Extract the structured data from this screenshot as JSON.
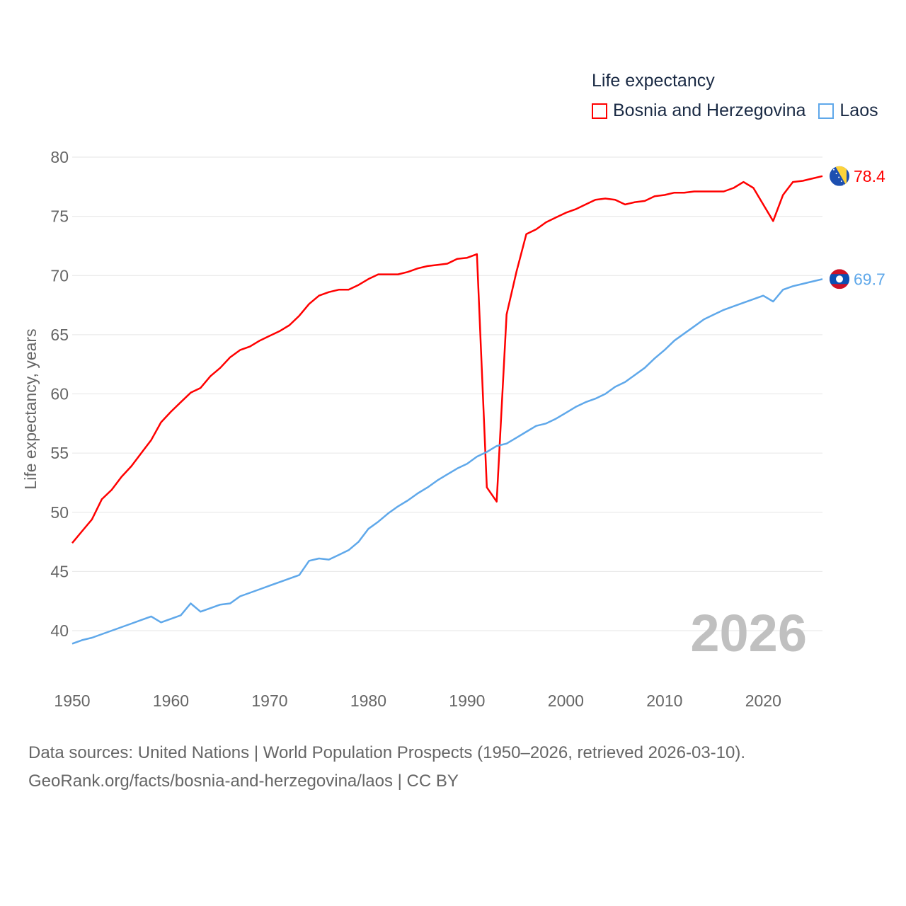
{
  "chart_data": {
    "type": "line",
    "legend_title": "Life expectancy",
    "ylabel": "Life expectancy, years",
    "xlabel": "",
    "ylim": [
      40,
      80
    ],
    "xlim": [
      1950,
      2026
    ],
    "yticks": [
      40,
      45,
      50,
      55,
      60,
      65,
      70,
      75,
      80
    ],
    "xticks": [
      1950,
      1960,
      1970,
      1980,
      1990,
      2000,
      2010,
      2020
    ],
    "year_label": "2026",
    "grid": true,
    "legend_position": "top-right",
    "x": [
      1950,
      1951,
      1952,
      1953,
      1954,
      1955,
      1956,
      1957,
      1958,
      1959,
      1960,
      1961,
      1962,
      1963,
      1964,
      1965,
      1966,
      1967,
      1968,
      1969,
      1970,
      1971,
      1972,
      1973,
      1974,
      1975,
      1976,
      1977,
      1978,
      1979,
      1980,
      1981,
      1982,
      1983,
      1984,
      1985,
      1986,
      1987,
      1988,
      1989,
      1990,
      1991,
      1992,
      1993,
      1994,
      1995,
      1996,
      1997,
      1998,
      1999,
      2000,
      2001,
      2002,
      2003,
      2004,
      2005,
      2006,
      2007,
      2008,
      2009,
      2010,
      2011,
      2012,
      2013,
      2014,
      2015,
      2016,
      2017,
      2018,
      2019,
      2020,
      2021,
      2022,
      2023,
      2024,
      2025,
      2026
    ],
    "series": [
      {
        "name": "Bosnia and Herzegovina",
        "color": "#ff0000",
        "end_label": "78.4",
        "flag": "bosnia",
        "values": [
          47.4,
          48.4,
          49.4,
          51.1,
          51.9,
          53.0,
          53.9,
          55.0,
          56.1,
          57.6,
          58.5,
          59.3,
          60.1,
          60.5,
          61.5,
          62.2,
          63.1,
          63.7,
          64.0,
          64.5,
          64.9,
          65.3,
          65.8,
          66.6,
          67.6,
          68.3,
          68.6,
          68.8,
          68.8,
          69.2,
          69.7,
          70.1,
          70.1,
          70.1,
          70.3,
          70.6,
          70.8,
          70.9,
          71.0,
          71.4,
          71.5,
          71.8,
          52.1,
          50.9,
          66.7,
          70.3,
          73.5,
          73.9,
          74.5,
          74.9,
          75.3,
          75.6,
          76.0,
          76.4,
          76.5,
          76.4,
          76.0,
          76.2,
          76.3,
          76.7,
          76.8,
          77.0,
          77.0,
          77.1,
          77.1,
          77.1,
          77.1,
          77.4,
          77.9,
          77.4,
          76.0,
          74.6,
          76.8,
          77.9,
          78.0,
          78.2,
          78.4
        ]
      },
      {
        "name": "Laos",
        "color": "#5fa8ea",
        "end_label": "69.7",
        "flag": "laos",
        "values": [
          38.9,
          39.2,
          39.4,
          39.7,
          40.0,
          40.3,
          40.6,
          40.9,
          41.2,
          40.7,
          41.0,
          41.3,
          42.3,
          41.6,
          41.9,
          42.2,
          42.3,
          42.9,
          43.2,
          43.5,
          43.8,
          44.1,
          44.4,
          44.7,
          45.9,
          46.1,
          46.0,
          46.4,
          46.8,
          47.5,
          48.6,
          49.2,
          49.9,
          50.5,
          51.0,
          51.6,
          52.1,
          52.7,
          53.2,
          53.7,
          54.1,
          54.7,
          55.1,
          55.6,
          55.8,
          56.3,
          56.8,
          57.3,
          57.5,
          57.9,
          58.4,
          58.9,
          59.3,
          59.6,
          60.0,
          60.6,
          61.0,
          61.6,
          62.2,
          63.0,
          63.7,
          64.5,
          65.1,
          65.7,
          66.3,
          66.7,
          67.1,
          67.4,
          67.7,
          68.0,
          68.3,
          67.8,
          68.8,
          69.1,
          69.3,
          69.5,
          69.7
        ]
      }
    ]
  },
  "footer": {
    "line1": "Data sources: United Nations | World Population Prospects (1950–2026, retrieved 2026-03-10).",
    "line2": "GeoRank.org/facts/bosnia-and-herzegovina/laos | CC BY"
  }
}
